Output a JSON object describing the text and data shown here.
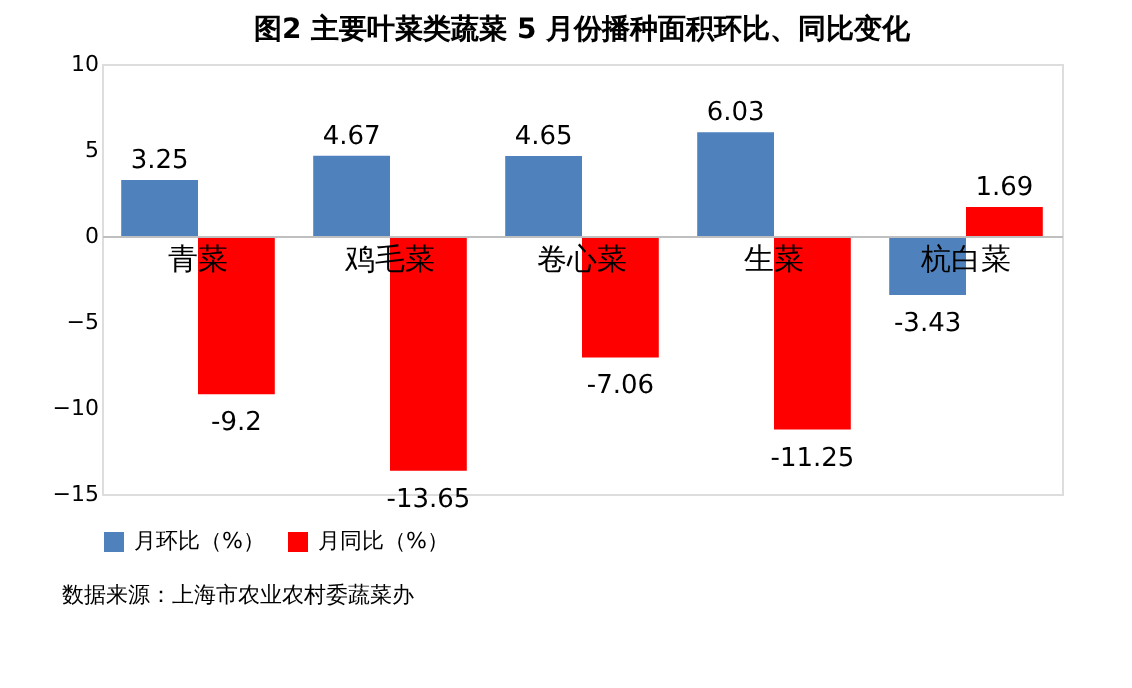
{
  "chart_data": {
    "type": "bar",
    "title": "图2  主要叶菜类蔬菜 5 月份播种面积环比、同比变化",
    "categories": [
      "青菜",
      "鸡毛菜",
      "卷心菜",
      "生菜",
      "杭白菜"
    ],
    "series": [
      {
        "name": "月环比（%）",
        "color": "#4f81bd",
        "values": [
          3.25,
          4.67,
          4.65,
          6.03,
          -3.43
        ]
      },
      {
        "name": "月同比（%）",
        "color": "#ff0000",
        "values": [
          -9.2,
          -13.65,
          -7.06,
          -11.25,
          1.69
        ]
      }
    ],
    "ylim": [
      -15,
      10
    ],
    "yticks": [
      -15,
      -10,
      -5,
      0,
      5,
      10
    ],
    "grid": false,
    "legend": "bottom",
    "data_labels": true,
    "annotations": [
      "数据来源：上海市农业农村委蔬菜办"
    ]
  }
}
